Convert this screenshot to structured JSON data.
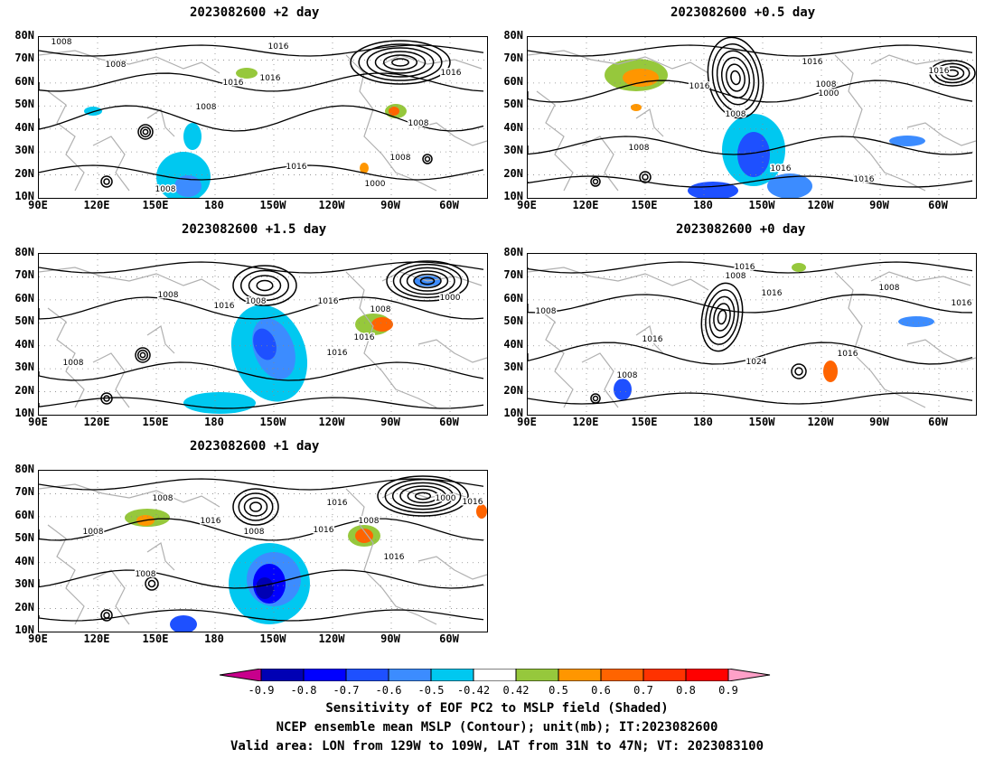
{
  "panels": [
    {
      "id": "p1",
      "title": "2023082600 +2 day",
      "contour_labels": [
        "1008",
        "1008",
        "1016",
        "1016",
        "1016",
        "1008",
        "1016",
        "1008",
        "1008",
        "1008",
        "1000",
        "1016"
      ]
    },
    {
      "id": "p2",
      "title": "2023082600 +0.5 day",
      "contour_labels": [
        "1016",
        "1016",
        "1008",
        "1016",
        "1008",
        "1000",
        "1008",
        "1016",
        "1016"
      ]
    },
    {
      "id": "p3",
      "title": "2023082600 +1.5 day",
      "contour_labels": [
        "1008",
        "1008",
        "1016",
        "1016",
        "1008",
        "1016",
        "1016",
        "1000",
        "1008"
      ]
    },
    {
      "id": "p4",
      "title": "2023082600 +0 day",
      "contour_labels": [
        "1016",
        "1008",
        "1016",
        "1008",
        "1008",
        "1016",
        "1024",
        "1016",
        "1008",
        "1016"
      ]
    },
    {
      "id": "p5",
      "title": "2023082600 +1 day",
      "contour_labels": [
        "1008",
        "1016",
        "1016",
        "1008",
        "1008",
        "1016",
        "1000",
        "1016",
        "1008",
        "1016",
        "1008"
      ]
    }
  ],
  "lat_labels": [
    "80N",
    "70N",
    "60N",
    "50N",
    "40N",
    "30N",
    "20N",
    "10N"
  ],
  "lon_labels": [
    "90E",
    "120E",
    "150E",
    "180",
    "150W",
    "120W",
    "90W",
    "60W"
  ],
  "colorbar": {
    "tick_labels": [
      "-0.9",
      "-0.8",
      "-0.7",
      "-0.6",
      "-0.5",
      "-0.42",
      "0.42",
      "0.5",
      "0.6",
      "0.7",
      "0.8",
      "0.9"
    ],
    "colors": [
      "#c8008c",
      "#0000b4",
      "#0000ff",
      "#1e50ff",
      "#3c8cff",
      "#00c8f0",
      "#ffffff",
      "#96c83c",
      "#ff9600",
      "#ff6400",
      "#ff3200",
      "#ff0000",
      "#ffa0c8"
    ]
  },
  "footer": {
    "line1": "Sensitivity of EOF PC2 to MSLP field (Shaded)",
    "line2": "NCEP ensemble mean MSLP (Contour); unit(mb); IT:2023082600",
    "line3": "Valid area: LON from 129W to 109W, LAT from 31N to 47N; VT: 2023083100"
  }
}
